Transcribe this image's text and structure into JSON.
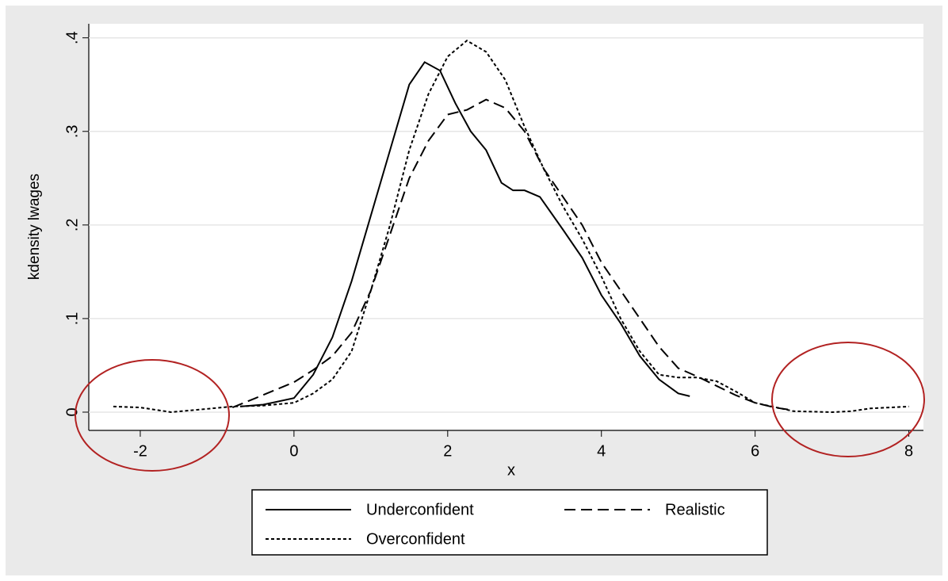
{
  "chart_data": {
    "type": "line",
    "x_label": "x",
    "y_label": "kdensity lwages",
    "xlim": [
      -2.67,
      8.19
    ],
    "ylim": [
      -0.0195,
      0.415
    ],
    "xticks": [
      -2,
      0,
      2,
      4,
      6,
      8
    ],
    "yticks": [
      0,
      {
        "value": 0.1,
        "label": ".1"
      },
      {
        "value": 0.2,
        "label": ".2"
      },
      {
        "value": 0.3,
        "label": ".3"
      },
      {
        "value": 0.4,
        "label": ".4"
      }
    ],
    "grid": true,
    "legend": "bottom",
    "series": [
      {
        "name": "Underconfident",
        "color": "#000000",
        "line_style": "solid",
        "x": [
          -0.7,
          -0.4,
          0,
          0.25,
          0.5,
          0.75,
          1.0,
          1.25,
          1.5,
          1.7,
          1.9,
          2.1,
          2.3,
          2.5,
          2.7,
          2.85,
          3.0,
          3.2,
          3.5,
          3.75,
          4.0,
          4.25,
          4.5,
          4.75,
          5.0,
          5.15
        ],
        "values": [
          0.006,
          0.008,
          0.015,
          0.04,
          0.08,
          0.14,
          0.21,
          0.28,
          0.35,
          0.374,
          0.365,
          0.33,
          0.3,
          0.28,
          0.245,
          0.237,
          0.237,
          0.23,
          0.195,
          0.165,
          0.125,
          0.095,
          0.06,
          0.035,
          0.02,
          0.017
        ]
      },
      {
        "name": "Realistic",
        "color": "#000000",
        "line_style": "longdash",
        "x": [
          -0.8,
          -0.5,
          0,
          0.25,
          0.5,
          0.75,
          1.0,
          1.25,
          1.5,
          1.75,
          2.0,
          2.25,
          2.5,
          2.75,
          3.0,
          3.25,
          3.5,
          3.75,
          4.0,
          4.25,
          4.5,
          4.75,
          5.0,
          5.25,
          5.5,
          5.75,
          6.0,
          6.25,
          6.5
        ],
        "values": [
          0.005,
          0.015,
          0.032,
          0.045,
          0.06,
          0.085,
          0.13,
          0.19,
          0.25,
          0.29,
          0.318,
          0.323,
          0.334,
          0.325,
          0.3,
          0.26,
          0.23,
          0.2,
          0.16,
          0.13,
          0.1,
          0.07,
          0.047,
          0.038,
          0.028,
          0.018,
          0.01,
          0.005,
          0.002
        ]
      },
      {
        "name": "Overconfident",
        "color": "#000000",
        "line_style": "shortdash",
        "x": [
          -2.35,
          -2,
          -1.6,
          -1.2,
          -0.8,
          -0.4,
          0,
          0.25,
          0.5,
          0.75,
          1.0,
          1.25,
          1.5,
          1.75,
          2.0,
          2.25,
          2.5,
          2.75,
          3.0,
          3.25,
          3.5,
          3.75,
          4.0,
          4.25,
          4.5,
          4.75,
          5.0,
          5.25,
          5.5,
          5.75,
          6.0,
          6.5,
          7.0,
          7.25,
          7.5,
          8.0
        ],
        "values": [
          0.006,
          0.005,
          0.0,
          0.003,
          0.006,
          0.007,
          0.01,
          0.02,
          0.035,
          0.065,
          0.13,
          0.2,
          0.28,
          0.34,
          0.38,
          0.397,
          0.385,
          0.355,
          0.305,
          0.26,
          0.22,
          0.185,
          0.145,
          0.1,
          0.065,
          0.04,
          0.037,
          0.037,
          0.033,
          0.022,
          0.01,
          0.001,
          0.0,
          0.001,
          0.004,
          0.006
        ]
      }
    ]
  }
}
